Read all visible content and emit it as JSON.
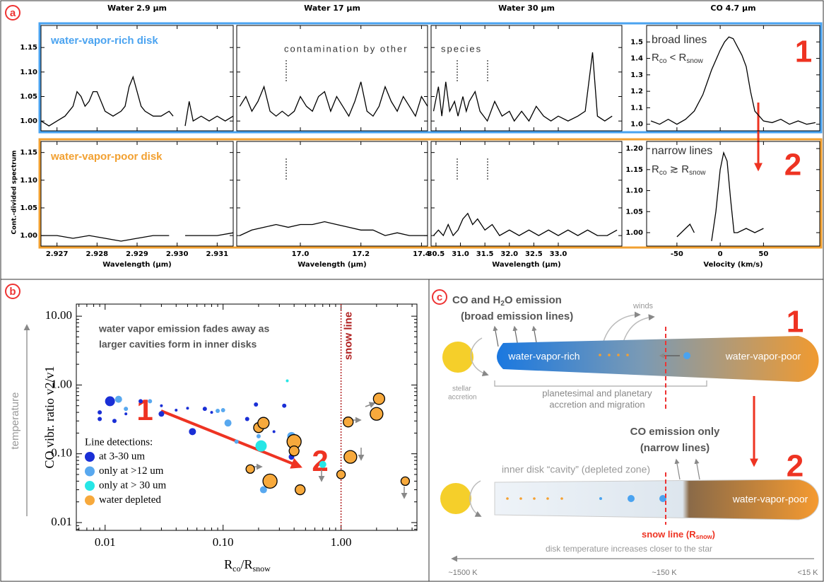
{
  "figure": {
    "panel_labels": [
      "a",
      "b",
      "c"
    ]
  },
  "chart_data": [
    {
      "type": "line",
      "title": "Water 2.9 μm",
      "annotations": [
        "water-vapor-rich disk"
      ],
      "x": [
        2.9266,
        2.9268,
        2.927,
        2.9272,
        2.9274,
        2.9275,
        2.9276,
        2.9277,
        2.9278,
        2.9279,
        2.928,
        2.9281,
        2.9282,
        2.9284,
        2.9286,
        2.9287,
        2.9288,
        2.9289,
        2.929,
        2.9291,
        2.9292,
        2.9294,
        2.9296,
        2.9298,
        2.9299,
        2.93,
        2.9302,
        2.9303,
        2.9304,
        2.9306,
        2.9308,
        2.931,
        2.9312,
        2.9314
      ],
      "series": [
        {
          "color": "#000000",
          "values": [
            1.0,
            0.99,
            1.0,
            1.01,
            1.03,
            1.06,
            1.05,
            1.03,
            1.04,
            1.06,
            1.06,
            1.04,
            1.02,
            1.01,
            1.02,
            1.03,
            1.07,
            1.09,
            1.06,
            1.03,
            1.02,
            1.01,
            1.01,
            1.02,
            1.01,
            null,
            0.99,
            1.04,
            1.0,
            1.01,
            1.0,
            1.01,
            1.0,
            1.01
          ]
        }
      ],
      "xlim": [
        2.9266,
        2.9314
      ],
      "ylim": [
        0.98,
        1.195
      ],
      "yticks": [
        {
          "value": 1,
          "label": "1.00"
        },
        1.05,
        {
          "value": 1.1,
          "label": "1.10"
        },
        1.15
      ]
    },
    {
      "type": "line",
      "title": "Water 17 μm",
      "annotations": [
        "contamination by other"
      ],
      "x": [
        16.8,
        16.82,
        16.84,
        16.86,
        16.88,
        16.9,
        16.92,
        16.94,
        16.96,
        16.98,
        17.0,
        17.02,
        17.04,
        17.06,
        17.08,
        17.1,
        17.12,
        17.14,
        17.16,
        17.18,
        17.2,
        17.22,
        17.24,
        17.26,
        17.28,
        17.3,
        17.32,
        17.34,
        17.36,
        17.38,
        17.4,
        17.42
      ],
      "series": [
        {
          "color": "#000000",
          "values": [
            1.03,
            1.05,
            1.02,
            1.04,
            1.07,
            1.02,
            1.01,
            1.02,
            1.01,
            1.02,
            1.05,
            1.03,
            1.02,
            1.05,
            1.06,
            1.02,
            1.05,
            1.03,
            1.01,
            1.04,
            1.08,
            1.02,
            1.01,
            1.03,
            1.07,
            1.04,
            1.02,
            1.05,
            1.03,
            1.01,
            1.05,
            1.03
          ]
        }
      ],
      "xlim": [
        16.79,
        17.42
      ],
      "ylim": [
        0.98,
        1.195
      ]
    },
    {
      "type": "line",
      "title": "Water 30 μm",
      "annotations": [
        "species"
      ],
      "x": [
        30.45,
        30.55,
        30.62,
        30.7,
        30.78,
        30.88,
        30.95,
        31.05,
        31.12,
        31.18,
        31.3,
        31.4,
        31.55,
        31.7,
        31.85,
        32.0,
        32.1,
        32.25,
        32.4,
        32.55,
        32.7,
        32.85,
        33.0,
        33.2,
        33.4,
        33.55,
        33.7,
        33.8,
        33.95,
        34.1
      ],
      "series": [
        {
          "color": "#000000",
          "values": [
            1.02,
            1.07,
            1.01,
            1.08,
            1.02,
            1.04,
            1.01,
            1.05,
            1.02,
            1.04,
            1.06,
            1.02,
            1.0,
            1.04,
            1.01,
            1.02,
            1.0,
            1.02,
            1.0,
            1.03,
            1.01,
            1.0,
            1.01,
            1.0,
            1.01,
            1.02,
            1.14,
            1.01,
            1.0,
            1.01
          ]
        }
      ],
      "xlim": [
        30.4,
        34.3
      ],
      "ylim": [
        0.98,
        1.195
      ]
    },
    {
      "type": "line",
      "title": "CO 4.7 μm",
      "annotations": [
        "broad lines",
        [
          "R",
          "co",
          " < R",
          "snow"
        ],
        "1"
      ],
      "x": [
        -80,
        -70,
        -60,
        -50,
        -40,
        -30,
        -20,
        -10,
        0,
        5,
        10,
        15,
        20,
        25,
        30,
        35,
        40,
        50,
        60,
        70,
        80,
        90,
        100,
        110
      ],
      "series": [
        {
          "color": "#000000",
          "values": [
            1.02,
            1.0,
            1.03,
            1.0,
            1.03,
            1.08,
            1.18,
            1.33,
            1.45,
            1.5,
            1.53,
            1.52,
            1.47,
            1.42,
            1.35,
            1.2,
            1.08,
            1.02,
            1.01,
            1.03,
            1.0,
            1.02,
            1.0,
            1.01
          ]
        }
      ],
      "xlim": [
        -85,
        115
      ],
      "ylim": [
        0.96,
        1.6
      ],
      "yticks": [
        {
          "value": 1,
          "label": "1.0"
        },
        1.1,
        1.2,
        1.3,
        1.4,
        1.5
      ]
    },
    {
      "type": "line",
      "annotations": [
        "water-vapor-poor disk"
      ],
      "ylabel": "Cont.-divided spectrum",
      "xlabel": "Wavelength (μm)",
      "x": [
        2.9266,
        2.927,
        2.9274,
        2.9278,
        2.9282,
        2.9286,
        2.929,
        2.9294,
        2.9298,
        2.93,
        2.9302,
        2.9306,
        2.931,
        2.9314
      ],
      "series": [
        {
          "color": "#000000",
          "values": [
            1.0,
            1.0,
            0.995,
            1.0,
            0.995,
            0.99,
            0.995,
            1.0,
            1.0,
            null,
            1.0,
            1.0,
            1.0,
            1.005
          ]
        }
      ],
      "xlim": [
        2.9266,
        2.9314
      ],
      "ylim": [
        0.981,
        1.17
      ],
      "yticks": [
        {
          "value": 1,
          "label": "1.00"
        },
        1.05,
        {
          "value": 1.1,
          "label": "1.10"
        },
        1.15
      ],
      "xticks": [
        2.927,
        2.928,
        2.929,
        {
          "value": 2.93,
          "label": "2.930"
        },
        2.931
      ]
    },
    {
      "type": "line",
      "xlabel": "Wavelength (μm)",
      "x": [
        16.8,
        16.84,
        16.88,
        16.92,
        16.96,
        17.0,
        17.04,
        17.08,
        17.12,
        17.16,
        17.2,
        17.24,
        17.28,
        17.32,
        17.36,
        17.4,
        17.42
      ],
      "series": [
        {
          "color": "#000000",
          "values": [
            1.0,
            1.01,
            1.015,
            1.02,
            1.015,
            1.02,
            1.02,
            1.025,
            1.02,
            1.015,
            1.01,
            1.01,
            1.0,
            1.005,
            1.0,
            1.0,
            1.0
          ]
        }
      ],
      "xlim": [
        16.79,
        17.42
      ],
      "ylim": [
        0.981,
        1.17
      ],
      "xticks": [
        {
          "value": 17,
          "label": "17.0"
        },
        17.2,
        17.4
      ]
    },
    {
      "type": "line",
      "xlabel": "Wavelength (μm)",
      "x": [
        30.45,
        30.55,
        30.65,
        30.75,
        30.85,
        30.95,
        31.05,
        31.15,
        31.25,
        31.35,
        31.5,
        31.65,
        31.8,
        32.0,
        32.2,
        32.4,
        32.6,
        32.8,
        33.0,
        33.2,
        33.4,
        33.6,
        33.8,
        34.0,
        34.2
      ],
      "series": [
        {
          "color": "#000000",
          "values": [
            1.0,
            1.01,
            1.0,
            1.02,
            1.0,
            1.01,
            1.03,
            1.04,
            1.02,
            1.03,
            1.01,
            1.02,
            1.0,
            1.01,
            1.0,
            1.01,
            1.0,
            1.01,
            1.0,
            1.01,
            1.0,
            1.01,
            1.0,
            1.0,
            1.01
          ]
        }
      ],
      "xlim": [
        30.4,
        34.3
      ],
      "ylim": [
        0.981,
        1.17
      ],
      "xticks": [
        30.5,
        {
          "value": 31,
          "label": "31.0"
        },
        31.5,
        {
          "value": 32,
          "label": "32.0"
        },
        32.5,
        {
          "value": 33,
          "label": "33.0"
        }
      ]
    },
    {
      "type": "line",
      "annotations": [
        "narrow lines",
        [
          "R",
          "co",
          " ≳ R",
          "snow"
        ],
        "2"
      ],
      "xlabel": "Velocity (km/s)",
      "x": [
        -50,
        -45,
        -40,
        -35,
        -30,
        -25,
        -10,
        -5,
        0,
        4,
        8,
        12,
        16,
        20,
        30,
        40,
        50
      ],
      "series": [
        {
          "color": "#000000",
          "values": [
            0.99,
            1.0,
            1.01,
            1.02,
            1.0,
            null,
            0.98,
            1.05,
            1.15,
            1.19,
            1.17,
            1.08,
            1.0,
            1.0,
            1.01,
            1.0,
            1.01
          ]
        }
      ],
      "xlim": [
        -85,
        115
      ],
      "ylim": [
        0.968,
        1.217
      ],
      "yticks": [
        {
          "value": 1,
          "label": "1.00"
        },
        1.05,
        {
          "value": 1.1,
          "label": "1.10"
        },
        1.15,
        {
          "value": 1.2,
          "label": "1.20"
        }
      ],
      "xticks": [
        -50,
        0,
        50
      ]
    },
    {
      "type": "scatter",
      "log_x": true,
      "log_y": true,
      "annotations": [
        "water vapor emission fades away as",
        "larger cavities form in inner disks",
        "1",
        "2",
        "temperature"
      ],
      "ylabel": "CO vibr. ratio v2/v1",
      "xlabel": [
        "R",
        "co",
        "/R",
        "snow"
      ],
      "legend_title": "Line detections:",
      "snow_line": {
        "x": 1,
        "label": "snow line",
        "color": "#b22222"
      },
      "xlim": [
        0.0057,
        4.4
      ],
      "ylim": [
        0.0077,
        15
      ],
      "xticks": [
        0.01,
        {
          "value": 0.1,
          "label": "0.10"
        },
        {
          "value": 1,
          "label": "1.00"
        }
      ],
      "yticks": [
        {
          "value": 10,
          "label": "10.00"
        },
        {
          "value": 1,
          "label": "1.00"
        },
        {
          "value": 0.1,
          "label": "0.10"
        },
        0.01
      ],
      "series": [
        {
          "name": "at 3-30 um",
          "color": "#1a2fd6",
          "x": [
            0.009,
            0.009,
            0.011,
            0.012,
            0.015,
            0.02,
            0.03,
            0.03,
            0.04,
            0.05,
            0.055,
            0.07,
            0.08,
            0.16,
            0.19,
            0.33,
            0.27,
            0.38
          ],
          "values": [
            0.4,
            0.32,
            0.58,
            0.3,
            0.38,
            0.58,
            0.5,
            0.38,
            0.43,
            0.46,
            0.21,
            0.45,
            0.4,
            0.32,
            0.52,
            0.5,
            0.21,
            0.09
          ],
          "sizes": [
            3,
            3,
            7,
            3,
            2,
            3,
            2,
            4,
            2,
            2,
            5,
            3,
            2,
            3,
            3,
            3,
            2,
            4
          ]
        },
        {
          "name": "only at >12 um",
          "color": "#58a8ef",
          "x": [
            0.013,
            0.015,
            0.024,
            0.09,
            0.1,
            0.11,
            0.13,
            0.2,
            0.22,
            0.38,
            0.4
          ],
          "values": [
            0.62,
            0.45,
            0.58,
            0.42,
            0.43,
            0.28,
            0.15,
            0.18,
            0.03,
            0.18,
            0.13
          ],
          "sizes": [
            5,
            3,
            3,
            3,
            3,
            5,
            3,
            3,
            5,
            6,
            6
          ]
        },
        {
          "name": "only at > 30 um",
          "color": "#26e6e6",
          "x": [
            0.21,
            0.35,
            0.7
          ],
          "values": [
            0.13,
            1.15,
            0.07
          ],
          "sizes": [
            8,
            2,
            5
          ]
        },
        {
          "name": "water depleted",
          "color": "#f7a93c",
          "edge": "#000000",
          "x": [
            0.17,
            0.2,
            0.22,
            0.25,
            0.4,
            0.4,
            0.45,
            1.0,
            1.15,
            1.2,
            2.0,
            2.1,
            3.5
          ],
          "values": [
            0.06,
            0.24,
            0.28,
            0.04,
            0.15,
            0.11,
            0.03,
            0.05,
            0.29,
            0.09,
            0.38,
            0.63,
            0.04
          ],
          "sizes": [
            6,
            7,
            8,
            10,
            10,
            7,
            7,
            6,
            7,
            9,
            9,
            8,
            6
          ]
        }
      ]
    }
  ],
  "diagram": {
    "top_heading": [
      "CO and H",
      "2",
      "O emission"
    ],
    "top_subheading": "(broad emission lines)",
    "winds": "winds",
    "rich_label": "water-vapor-rich",
    "poor_label_top": "water-vapor-poor",
    "stellar_accretion": [
      "stellar",
      "accretion"
    ],
    "migration": [
      "planetesimal and planetary",
      "accretion and migration"
    ],
    "step_1": "1",
    "bottom_heading": "CO emission only",
    "bottom_subheading": "(narrow lines)",
    "step_2": "2",
    "cavity_label": "inner disk “cavity” (depleted zone)",
    "poor_label_bottom": "water-vapor-poor",
    "snow_label": [
      "snow line (R",
      "snow",
      ")"
    ],
    "temperature_note": "disk temperature increases closer to the star",
    "temperatures": [
      "~1500 K",
      "~150 K",
      "<15 K"
    ]
  }
}
